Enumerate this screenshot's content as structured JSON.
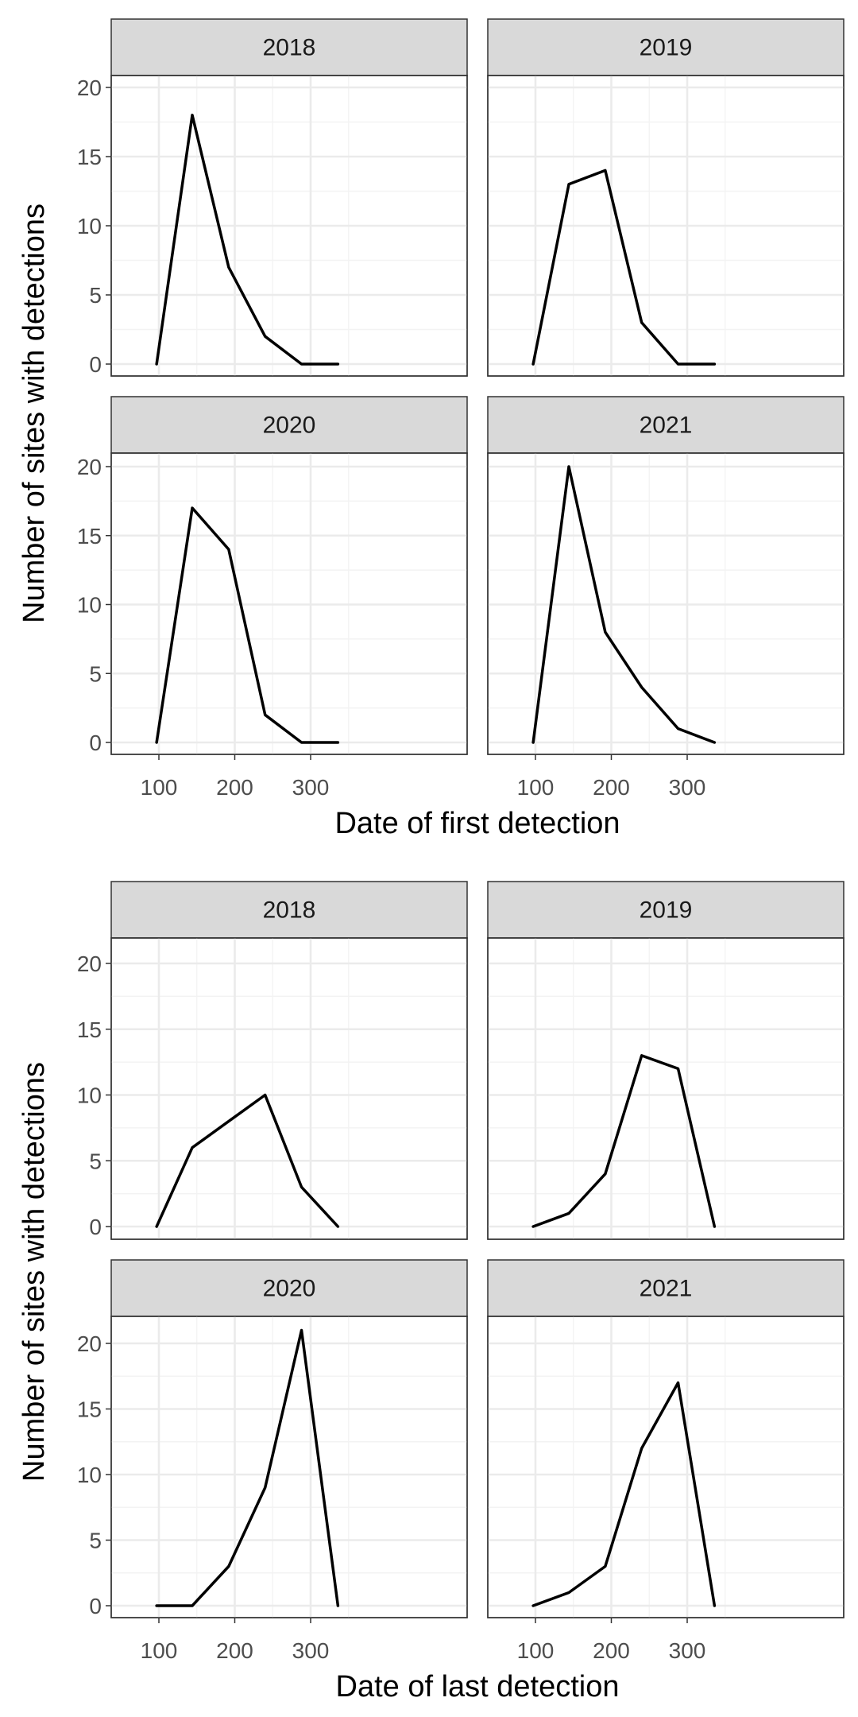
{
  "chart_data": [
    {
      "type": "line",
      "facet": "year",
      "xlabel": "Date of first detection",
      "ylabel": "Number of sites with detections",
      "xlim": [
        60,
        380
      ],
      "ylim": [
        0,
        20
      ],
      "x_ticks": [
        100,
        200,
        300
      ],
      "y_ticks": [
        0,
        5,
        10,
        15,
        20
      ],
      "grid": true,
      "panels": [
        {
          "title": "2018",
          "x": [
            97,
            144,
            192,
            240,
            288,
            336
          ],
          "y": [
            0,
            18,
            7,
            2,
            0,
            0
          ]
        },
        {
          "title": "2019",
          "x": [
            97,
            144,
            192,
            240,
            288,
            336
          ],
          "y": [
            0,
            13,
            14,
            3,
            0,
            0
          ]
        },
        {
          "title": "2020",
          "x": [
            97,
            144,
            192,
            240,
            288,
            336
          ],
          "y": [
            0,
            17,
            14,
            2,
            0,
            0
          ]
        },
        {
          "title": "2021",
          "x": [
            97,
            144,
            192,
            240,
            288,
            336
          ],
          "y": [
            0,
            20,
            8,
            4,
            1,
            0
          ]
        }
      ]
    },
    {
      "type": "line",
      "facet": "year",
      "xlabel": "Date of last detection",
      "ylabel": "Number of sites with detections",
      "xlim": [
        60,
        380
      ],
      "ylim": [
        0,
        21
      ],
      "x_ticks": [
        100,
        200,
        300
      ],
      "y_ticks": [
        0,
        5,
        10,
        15,
        20
      ],
      "grid": true,
      "panels": [
        {
          "title": "2018",
          "x": [
            97,
            144,
            192,
            240,
            288,
            336
          ],
          "y": [
            0,
            6,
            8,
            10,
            3,
            0
          ]
        },
        {
          "title": "2019",
          "x": [
            97,
            144,
            192,
            240,
            288,
            336
          ],
          "y": [
            0,
            1,
            4,
            13,
            12,
            0
          ]
        },
        {
          "title": "2020",
          "x": [
            97,
            144,
            192,
            240,
            288,
            336
          ],
          "y": [
            0,
            0,
            3,
            9,
            21,
            0
          ]
        },
        {
          "title": "2021",
          "x": [
            97,
            144,
            192,
            240,
            288,
            336
          ],
          "y": [
            0,
            1,
            3,
            12,
            17,
            0
          ]
        }
      ]
    }
  ]
}
